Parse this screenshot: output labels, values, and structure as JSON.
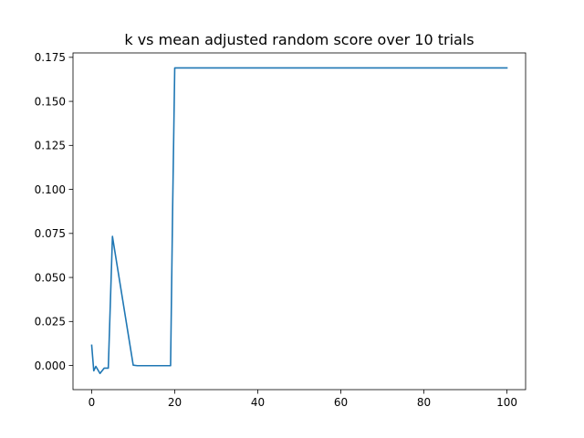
{
  "chart_data": {
    "type": "line",
    "title": "k vs mean adjusted random score over 10 trials",
    "xlabel": "",
    "ylabel": "",
    "xlim": [
      -4.5,
      104.5
    ],
    "ylim": [
      -0.0137,
      0.1775
    ],
    "x_ticks": [
      0,
      20,
      40,
      60,
      80,
      100
    ],
    "x_tick_labels": [
      "0",
      "20",
      "40",
      "60",
      "80",
      "100"
    ],
    "y_ticks": [
      0.0,
      0.025,
      0.05,
      0.075,
      0.1,
      0.125,
      0.15,
      0.175
    ],
    "y_tick_labels": [
      "0.000",
      "0.025",
      "0.050",
      "0.075",
      "0.100",
      "0.125",
      "0.150",
      "0.175"
    ],
    "grid": false,
    "series": [
      {
        "color": "#1f77b4",
        "x": [
          0,
          0.5,
          1,
          2,
          3,
          4,
          5,
          10,
          11,
          15,
          19,
          19.5,
          20,
          100
        ],
        "y": [
          0.0115,
          -0.003,
          -0.0005,
          -0.0045,
          -0.0015,
          -0.0015,
          0.0733,
          0.0002,
          -0.0001,
          -0.0001,
          -0.0001,
          0.09,
          0.169,
          0.169
        ]
      }
    ]
  }
}
